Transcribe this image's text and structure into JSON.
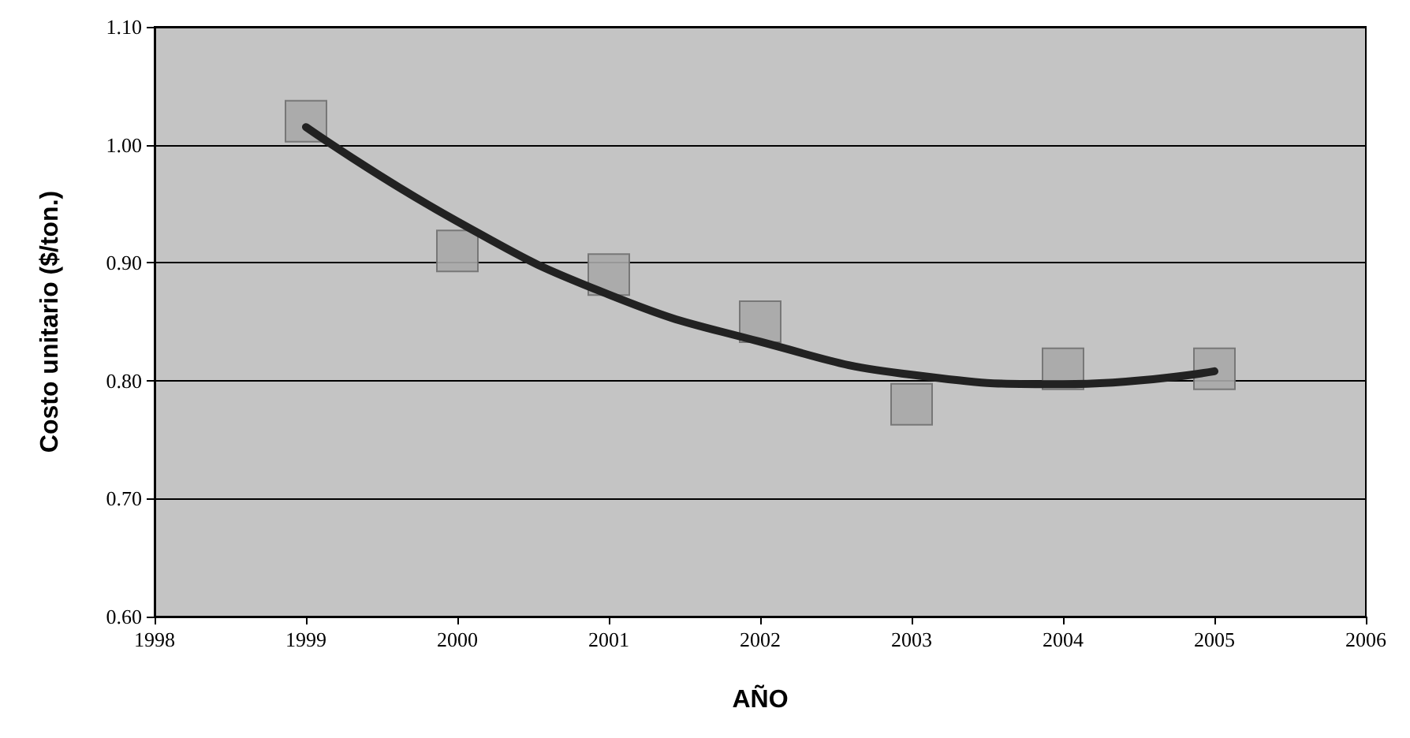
{
  "chart_data": {
    "type": "scatter",
    "xlabel": "AÑO",
    "ylabel": "Costo unitario ($/ton.)",
    "xlim": [
      1998,
      2006
    ],
    "xticks": [
      1998,
      1999,
      2000,
      2001,
      2002,
      2003,
      2004,
      2005,
      2006
    ],
    "ylim": [
      0.6,
      1.1
    ],
    "yticks": [
      {
        "value": 0.6,
        "label": "0.60"
      },
      {
        "value": 0.7,
        "label": "0.70"
      },
      {
        "value": 0.8,
        "label": "0.80"
      },
      {
        "value": 0.9,
        "label": "0.90"
      },
      {
        "value": 1.0,
        "label": "1.00"
      },
      {
        "value": 1.1,
        "label": "1.10"
      }
    ],
    "grid": "y",
    "x": [
      1999,
      2000,
      2001,
      2002,
      2003,
      2004,
      2005
    ],
    "series": [
      {
        "marker": "square",
        "color": "#a8a8a8",
        "values": [
          1.02,
          0.91,
          0.89,
          0.85,
          0.78,
          0.81,
          0.81
        ]
      },
      {
        "type": "line",
        "marker": "none",
        "line_style": "solid",
        "color": "#222222",
        "x": [
          1999,
          2000,
          2001,
          2002,
          2003,
          2004,
          2005
        ],
        "values": [
          1.015,
          0.935,
          0.873,
          0.833,
          0.805,
          0.797,
          0.808
        ]
      }
    ]
  }
}
